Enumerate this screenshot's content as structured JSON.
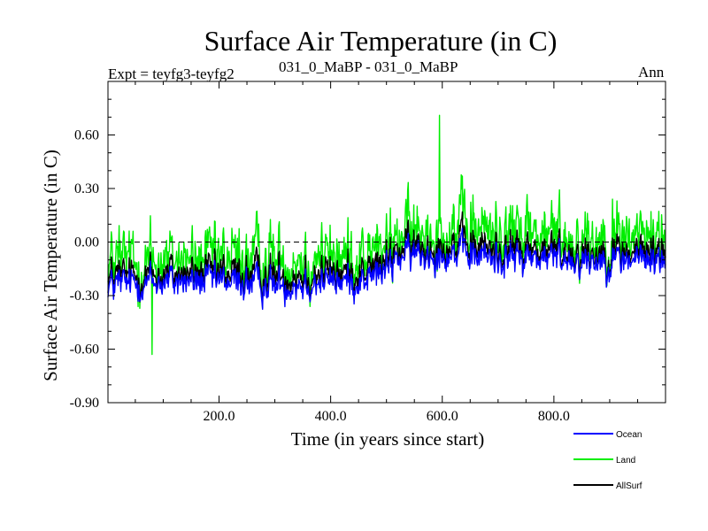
{
  "chart_data": {
    "type": "line",
    "title": "Surface Air Temperature (in C)",
    "expt_label": "Expt = teyfg3-teyfg2",
    "subtitle": "031_0_MaBP - 031_0_MaBP",
    "season": "Ann",
    "xlabel": "Time (in years since start)",
    "ylabel": "Surface Air Temperature (in C)",
    "xlim": [
      1,
      1000
    ],
    "ylim": [
      -0.9,
      0.9
    ],
    "x_ticks": [
      200,
      400,
      600,
      800
    ],
    "x_tick_labels": [
      "200.0",
      "400.0",
      "600.0",
      "800.0"
    ],
    "y_ticks": [
      -0.9,
      -0.6,
      -0.3,
      0.0,
      0.3,
      0.6
    ],
    "y_tick_labels": [
      "-0.90",
      "-0.60",
      "-0.30",
      "0.00",
      "0.30",
      "0.60"
    ],
    "reference_line": 0.0,
    "legend_position": "bottom-right, outside plot",
    "series": [
      {
        "name": "Ocean",
        "color": "#0000ff",
        "trend_years": [
          1,
          100,
          200,
          300,
          400,
          450,
          500,
          520,
          600,
          700,
          800,
          900,
          1000
        ],
        "trend_values": [
          -0.24,
          -0.22,
          -0.22,
          -0.24,
          -0.22,
          -0.22,
          -0.16,
          -0.08,
          -0.06,
          -0.09,
          -0.09,
          -0.1,
          -0.1
        ],
        "noise_amplitude": 0.06
      },
      {
        "name": "Land",
        "color": "#00ee00",
        "trend_years": [
          1,
          100,
          200,
          300,
          400,
          450,
          500,
          520,
          600,
          700,
          800,
          900,
          1000
        ],
        "trend_values": [
          -0.12,
          -0.1,
          -0.1,
          -0.08,
          -0.08,
          -0.08,
          -0.03,
          0.04,
          0.08,
          0.06,
          0.04,
          0.02,
          0.04
        ],
        "noise_amplitude": 0.13,
        "max_point": {
          "year": 595,
          "value": 0.71
        },
        "min_point": {
          "year": 80,
          "value": -0.63
        }
      },
      {
        "name": "AllSurf",
        "color": "#000000",
        "trend_years": [
          1,
          100,
          200,
          300,
          400,
          450,
          500,
          520,
          600,
          700,
          800,
          900,
          1000
        ],
        "trend_values": [
          -0.2,
          -0.18,
          -0.18,
          -0.18,
          -0.17,
          -0.17,
          -0.12,
          -0.04,
          -0.01,
          -0.04,
          -0.05,
          -0.06,
          -0.05
        ],
        "noise_amplitude": 0.07
      }
    ]
  }
}
